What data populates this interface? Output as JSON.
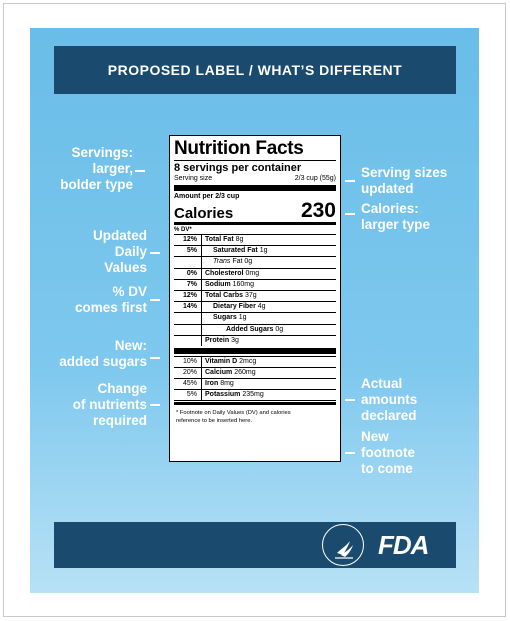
{
  "title": "PROPOSED LABEL / WHAT’S DIFFERENT",
  "left_notes": [
    "Servings:\nlarger,\nbolder type",
    "Updated\nDaily\nValues",
    "% DV\ncomes first",
    "New:\nadded sugars",
    "Change\nof nutrients\nrequired"
  ],
  "right_notes": [
    "Serving sizes\nupdated",
    "Calories:\nlarger type",
    "Actual\namounts\ndeclared",
    "New\nfootnote\nto come"
  ],
  "label": {
    "heading": "Nutrition Facts",
    "servings": "8 servings per container",
    "serving_size_label": "Serving size",
    "serving_size_value": "2/3 cup (55g)",
    "amount_per": "Amount per 2/3 cup",
    "calories_label": "Calories",
    "calories_value": "230",
    "dv_header": "% DV*",
    "nutrients": [
      {
        "pct": "12%",
        "name": "Total Fat",
        "amount": "8g",
        "bold": true
      },
      {
        "pct": "5%",
        "name": "Saturated Fat",
        "amount": "1g",
        "bold": false
      },
      {
        "pct": "",
        "name": "Trans",
        "name_suffix": " Fat",
        "amount": "0g",
        "bold": false
      },
      {
        "pct": "0%",
        "name": "Cholesterol",
        "amount": "0mg",
        "bold": true
      },
      {
        "pct": "7%",
        "name": "Sodium",
        "amount": "160mg",
        "bold": true
      },
      {
        "pct": "12%",
        "name": "Total Carbs",
        "amount": "37g",
        "bold": true
      },
      {
        "pct": "14%",
        "name": "Dietary Fiber",
        "amount": "4g",
        "bold": false
      },
      {
        "pct": "",
        "name": "Sugars",
        "amount": "1g",
        "bold": false
      },
      {
        "pct": "",
        "name": "Added Sugars",
        "amount": "0g",
        "bold": false
      },
      {
        "pct": "",
        "name": "Protein",
        "amount": "3g",
        "bold": true
      }
    ],
    "vitamins": [
      {
        "pct": "10%",
        "name": "Vitamin D",
        "amount": "2mcg"
      },
      {
        "pct": "20%",
        "name": "Calcium",
        "amount": "260mg"
      },
      {
        "pct": "45%",
        "name": "Iron",
        "amount": "8mg"
      },
      {
        "pct": "5%",
        "name": "Potassium",
        "amount": "235mg"
      }
    ],
    "footnote": "* Footnote on Daily Values (DV) and calories\nreference to be inserted here."
  },
  "logos": {
    "fda": "FDA"
  },
  "colors": {
    "panel": "#69bde8",
    "bar": "#1a4a6e",
    "text_on_panel": "#ffffff"
  }
}
